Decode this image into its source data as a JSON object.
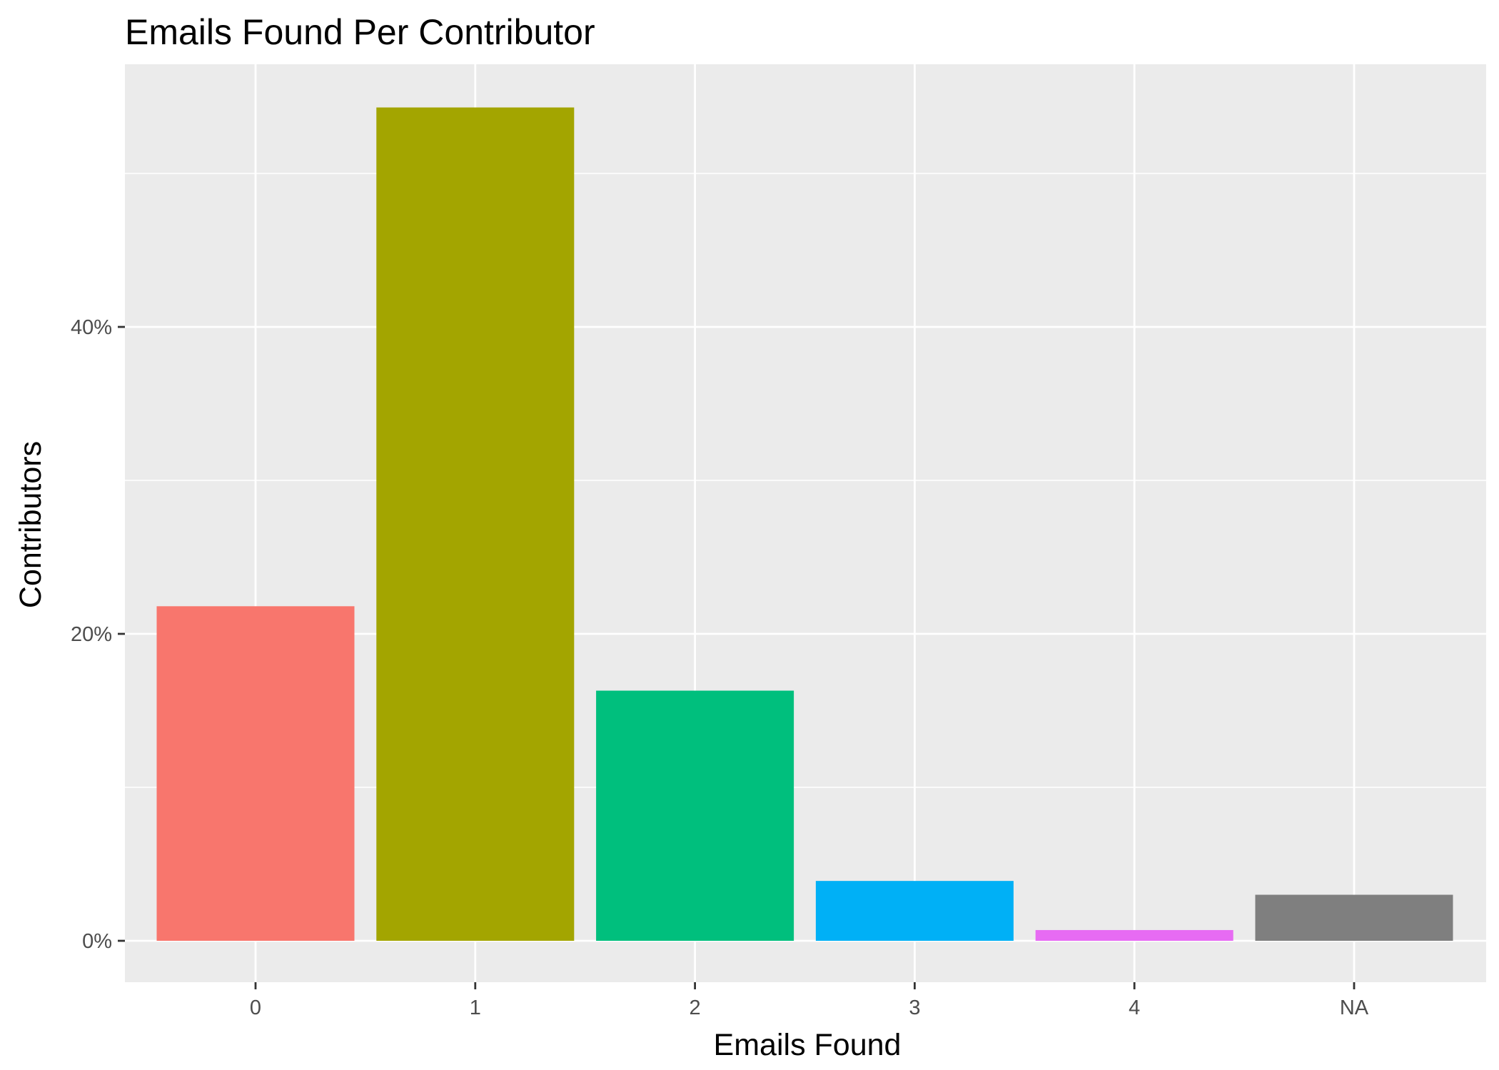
{
  "chart_data": {
    "type": "bar",
    "title": "Emails Found Per Contributor",
    "xlabel": "Emails Found",
    "ylabel": "Contributors",
    "categories": [
      "0",
      "1",
      "2",
      "3",
      "4",
      "NA"
    ],
    "values": [
      21.8,
      54.3,
      16.3,
      3.9,
      0.7,
      3.0
    ],
    "ylim": [
      0,
      57
    ],
    "y_ticks": [
      0,
      20,
      40
    ],
    "y_tick_labels": [
      "0%",
      "20%",
      "40%"
    ],
    "y_minor_ticks": [
      10,
      30,
      50
    ],
    "bar_colors": [
      "#F8766D",
      "#A3A500",
      "#00BF7D",
      "#00B0F6",
      "#E76BF3",
      "#7F7F7F"
    ],
    "panel_background": "#EBEBEB",
    "grid_color": "#FFFFFF",
    "grid": true,
    "legend": "none"
  }
}
